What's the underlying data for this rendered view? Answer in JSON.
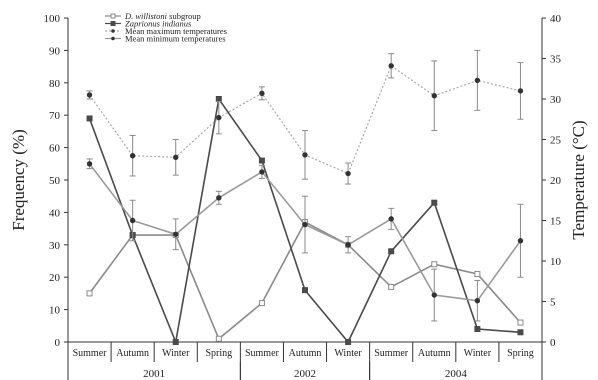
{
  "chart_data": {
    "type": "line",
    "categories": [
      "Summer",
      "Autumn",
      "Winter",
      "Spring",
      "Summer",
      "Autumn",
      "Winter",
      "Summer",
      "Autumn",
      "Winter",
      "Spring"
    ],
    "year_groups": [
      {
        "label": "2001",
        "start": 0,
        "end": 3
      },
      {
        "label": "2002",
        "start": 4,
        "end": 6
      },
      {
        "label": "2004",
        "start": 7,
        "end": 10
      }
    ],
    "ylabel": "Frequency (%)",
    "y2label": "Temperature (°C)",
    "ylim": [
      0,
      100
    ],
    "y2lim": [
      0,
      40
    ],
    "yticks": [
      0,
      10,
      20,
      30,
      40,
      50,
      60,
      70,
      80,
      90,
      100
    ],
    "y2ticks": [
      0,
      5,
      10,
      15,
      20,
      25,
      30,
      35,
      40
    ],
    "legend_placement": "top-left",
    "series": [
      {
        "name": "D. willistoni",
        "name_suffix": " subgroup",
        "italic": true,
        "axis": "left",
        "color": "#8a8a8a",
        "dash": "",
        "marker": "open-square",
        "values": [
          15,
          33,
          33,
          1,
          12,
          37,
          30,
          17,
          24,
          21,
          6
        ]
      },
      {
        "name": "Zaprionus indianus",
        "name_suffix": "",
        "italic": true,
        "axis": "left",
        "color": "#4a4a4a",
        "dash": "",
        "marker": "filled-square",
        "values": [
          69,
          33,
          0,
          75,
          56,
          16,
          0,
          28,
          43,
          4,
          3
        ]
      },
      {
        "name": "Mean maximum temperatures",
        "name_suffix": "",
        "italic": false,
        "axis": "right",
        "color": "#a8a8a8",
        "dash": "2,2",
        "marker": "filled-dot",
        "values": [
          30.5,
          23,
          22.8,
          27.7,
          30.7,
          23.1,
          20.8,
          34.1,
          30.4,
          32.3,
          31
        ],
        "errors": [
          0.5,
          2.5,
          2.2,
          2,
          0.8,
          3,
          1.3,
          1.5,
          4.3,
          3.7,
          3.5
        ]
      },
      {
        "name": "Mean minimum temperatures",
        "name_suffix": "",
        "italic": false,
        "axis": "right",
        "color": "#9a9a9a",
        "dash": "",
        "marker": "filled-dot",
        "values": [
          22,
          15,
          13.3,
          17.8,
          21,
          14.5,
          12,
          15.2,
          5.8,
          5.1,
          12.5
        ],
        "errors": [
          0.6,
          2.5,
          1.9,
          0.8,
          0.8,
          3.5,
          1,
          1.3,
          3.2,
          2.5,
          4.5
        ]
      }
    ]
  }
}
